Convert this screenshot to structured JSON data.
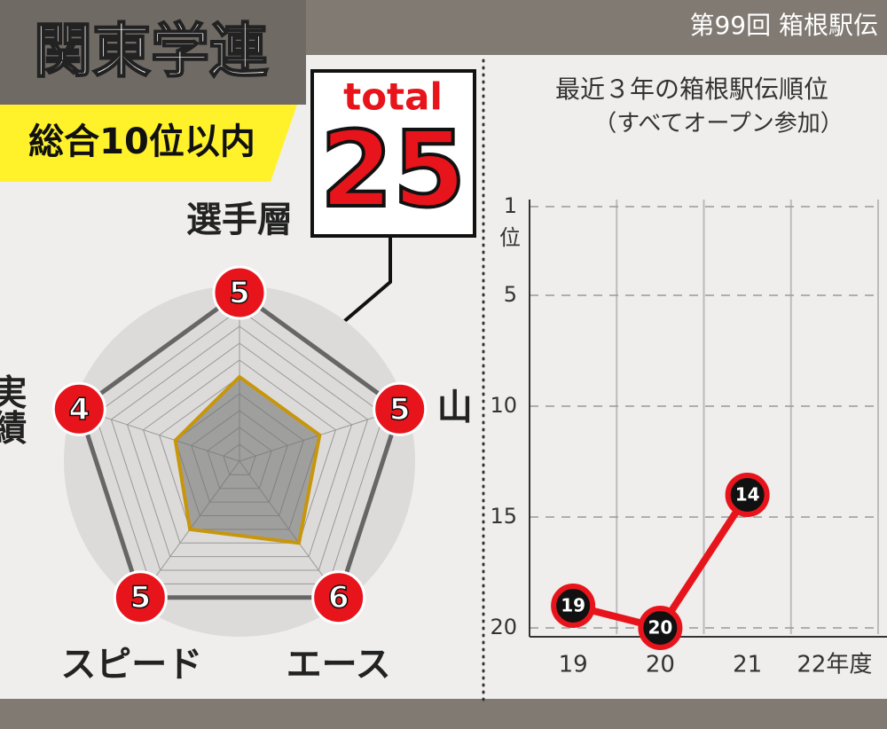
{
  "header": {
    "title": "関東学連",
    "badge": "総合10位以内",
    "event": "第99回 箱根駅伝"
  },
  "total": {
    "label": "total",
    "value": 25
  },
  "chart_data": [
    {
      "type": "radar",
      "categories": [
        "選手層",
        "山",
        "エース",
        "スピード",
        "実績"
      ],
      "values": [
        5,
        5,
        6,
        5,
        4
      ],
      "rlim": [
        0,
        10
      ],
      "color": "#c8960c",
      "marker_color": "#e8141c"
    },
    {
      "type": "line",
      "title": "最近３年の箱根駅伝順位",
      "subtitle": "（すべてオープン参加）",
      "categories": [
        "19",
        "20",
        "21",
        "22年度"
      ],
      "values": [
        19,
        20,
        14,
        null
      ],
      "ylim": [
        1,
        20
      ],
      "y_inverted": true,
      "yticks": [
        1,
        5,
        10,
        15,
        20
      ],
      "y_unit": "位",
      "color": "#e8141c",
      "grid": true
    }
  ]
}
